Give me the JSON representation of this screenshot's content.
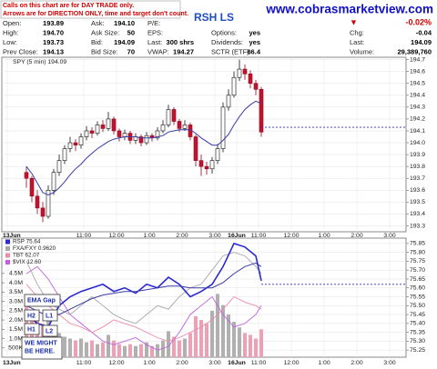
{
  "header": {
    "notice": [
      "Calls on this chart are for DAY TRADE only.",
      "Arrows are for DIRECTION ONLY, time and target don't count."
    ],
    "site": "www.cobrasmarketview.com",
    "symbol_tag": "RSH LS",
    "quote_rows": [
      [
        {
          "label": "Open:",
          "value": "193.89"
        },
        {
          "label": "Ask:",
          "value": "194.10"
        },
        {
          "label": "P/E:"
        }
      ],
      [
        {
          "label": "High:",
          "value": "194.70"
        },
        {
          "label": "Ask Size:",
          "value": "50"
        },
        {
          "label": "EPS:"
        },
        {
          "label": "Options:",
          "value": "yes"
        }
      ],
      [
        {
          "label": "Low:",
          "value": "193.73"
        },
        {
          "label": "Bid:",
          "value": "194.09"
        },
        {
          "label": "Last:",
          "value": "300 shrs"
        },
        {
          "label": "Dividends:",
          "value": "yes"
        }
      ],
      [
        {
          "label": "Prev Close:",
          "value": "194.13"
        },
        {
          "label": "Bid Size:",
          "value": "70"
        },
        {
          "label": "VWAP:",
          "value": "194.27"
        },
        {
          "label": "SCTR (ETF):",
          "value": "66.4"
        }
      ]
    ],
    "change": {
      "arrow": "▼",
      "pct": "-0.02%"
    },
    "stats": [
      {
        "label": "Chg:",
        "value": "-0.04"
      },
      {
        "label": "Last:",
        "value": "194.09"
      },
      {
        "label": "Volume:",
        "value": "29,389,760"
      }
    ]
  },
  "chart_data": [
    {
      "type": "candlestick",
      "title": "SPY (5 min) 194.09",
      "up_color": "#ffffff",
      "down_color": "#c8102e",
      "x": [
        7,
        9,
        11,
        13,
        15,
        17,
        19,
        21,
        23,
        25,
        27,
        29,
        31,
        33,
        35,
        37,
        39,
        41,
        43,
        45,
        47,
        49,
        51,
        53,
        55,
        57,
        59,
        61,
        63,
        65,
        67,
        69,
        71,
        73,
        75,
        77,
        79,
        81,
        83,
        85,
        87,
        89,
        91,
        93
      ],
      "open": [
        193.75,
        193.7,
        193.55,
        193.45,
        193.38,
        193.6,
        193.75,
        193.85,
        193.95,
        194.0,
        193.98,
        194.05,
        194.1,
        194.08,
        194.15,
        194.12,
        194.2,
        194.1,
        194.05,
        194.08,
        194.02,
        194.05,
        194.0,
        194.06,
        194.04,
        194.1,
        194.15,
        194.28,
        194.18,
        194.12,
        194.15,
        194.05,
        193.85,
        193.8,
        193.78,
        193.85,
        193.95,
        194.3,
        194.4,
        194.55,
        194.62,
        194.58,
        194.5,
        194.45
      ],
      "high": [
        193.8,
        193.72,
        193.6,
        193.5,
        193.64,
        193.78,
        193.9,
        193.98,
        194.05,
        194.03,
        194.08,
        194.14,
        194.13,
        194.18,
        194.19,
        194.26,
        194.22,
        194.12,
        194.11,
        194.1,
        194.08,
        194.07,
        194.09,
        194.08,
        194.13,
        194.19,
        194.32,
        194.3,
        194.2,
        194.19,
        194.17,
        194.07,
        193.9,
        193.84,
        193.88,
        193.99,
        194.34,
        194.45,
        194.6,
        194.7,
        194.66,
        194.61,
        194.53,
        194.47
      ],
      "low": [
        193.62,
        193.5,
        193.4,
        193.33,
        193.36,
        193.56,
        193.72,
        193.82,
        193.92,
        193.93,
        193.95,
        194.02,
        194.04,
        194.06,
        194.09,
        194.1,
        194.07,
        194.01,
        194.02,
        193.99,
        193.99,
        193.97,
        193.98,
        194.01,
        194.02,
        194.08,
        194.13,
        194.15,
        194.09,
        194.1,
        194.02,
        193.8,
        193.72,
        193.73,
        193.74,
        193.82,
        193.92,
        194.27,
        194.38,
        194.52,
        194.53,
        194.46,
        194.4,
        194.05
      ],
      "close": [
        193.7,
        193.55,
        193.45,
        193.38,
        193.6,
        193.75,
        193.85,
        193.95,
        194.0,
        193.98,
        194.05,
        194.1,
        194.08,
        194.15,
        194.12,
        194.2,
        194.1,
        194.05,
        194.08,
        194.02,
        194.05,
        194.0,
        194.06,
        194.04,
        194.1,
        194.15,
        194.28,
        194.18,
        194.12,
        194.15,
        194.05,
        193.85,
        193.8,
        193.78,
        193.85,
        193.95,
        194.3,
        194.4,
        194.55,
        194.62,
        194.58,
        194.5,
        194.45,
        194.09
      ],
      "ma": {
        "color": "#3a3aa8",
        "values": [
          193.8,
          193.74,
          193.66,
          193.58,
          193.56,
          193.58,
          193.62,
          193.67,
          193.73,
          193.78,
          193.82,
          193.87,
          193.91,
          193.95,
          193.98,
          194.01,
          194.03,
          194.04,
          194.05,
          194.05,
          194.05,
          194.04,
          194.04,
          194.04,
          194.05,
          194.06,
          194.09,
          194.1,
          194.11,
          194.11,
          194.11,
          194.08,
          194.04,
          194.01,
          193.98,
          193.98,
          194.02,
          194.07,
          194.15,
          194.22,
          194.28,
          194.32,
          194.35,
          194.33
        ]
      },
      "ref_line": {
        "value": 194.13,
        "color": "#2a2ad0"
      },
      "xlim": [
        -2,
        146
      ],
      "ylim": [
        193.25,
        194.72
      ],
      "yticks": [
        193.3,
        193.4,
        193.5,
        193.6,
        193.7,
        193.8,
        193.9,
        {
          "value": 194,
          "label": "194.0"
        },
        194.1,
        194.2,
        194.3,
        194.4,
        194.5,
        194.6,
        194.7
      ],
      "xticks": [
        {
          "value": 0,
          "label": "13Jun"
        },
        {
          "value": 28,
          "label": "11:00"
        },
        {
          "value": 40,
          "label": "12:00"
        },
        {
          "value": 52,
          "label": "1:00"
        },
        {
          "value": 64,
          "label": "2:00"
        },
        {
          "value": 76,
          "label": "3:00"
        },
        {
          "value": 84,
          "label": "16Jun"
        },
        {
          "value": 92,
          "label": "11:00"
        },
        {
          "value": 104,
          "label": "12:00"
        },
        {
          "value": 116,
          "label": "1:00"
        },
        {
          "value": 128,
          "label": "2:00"
        },
        {
          "value": 140,
          "label": "3:00"
        }
      ],
      "grid": true
    },
    {
      "type": "line",
      "x": [
        7,
        11,
        15,
        19,
        23,
        27,
        31,
        35,
        39,
        43,
        47,
        51,
        55,
        59,
        63,
        67,
        71,
        75,
        79,
        83,
        87,
        91,
        93
      ],
      "series": [
        {
          "name": "RSP 75.64",
          "color": "#2a2ad0",
          "values": [
            75.45,
            75.4,
            75.38,
            75.5,
            75.55,
            75.58,
            75.6,
            75.62,
            75.58,
            75.6,
            75.57,
            75.62,
            75.6,
            75.66,
            75.62,
            75.55,
            75.58,
            75.62,
            75.72,
            75.85,
            75.83,
            75.78,
            75.64
          ]
        },
        {
          "name": "FXA/FXY 0.9620",
          "color": "#a8a8a8",
          "values": [
            75.75,
            75.62,
            75.52,
            75.48,
            75.45,
            75.5,
            75.55,
            75.5,
            75.45,
            75.42,
            75.4,
            75.45,
            75.5,
            75.48,
            75.55,
            75.6,
            75.62,
            75.7,
            75.78,
            75.8,
            75.78,
            75.72,
            75.68
          ]
        },
        {
          "name": "TBT 62.07",
          "color": "#f08aa8",
          "values": [
            75.62,
            75.55,
            75.5,
            75.45,
            75.4,
            75.38,
            75.35,
            75.38,
            75.42,
            75.4,
            75.38,
            75.35,
            75.32,
            75.3,
            75.32,
            75.35,
            75.38,
            75.42,
            75.48,
            75.55,
            75.52,
            75.5,
            75.48
          ]
        },
        {
          "name": "$VIX 12.60",
          "color": "#c060e0",
          "values": [
            75.68,
            75.72,
            75.65,
            75.55,
            75.45,
            75.4,
            75.35,
            75.3,
            75.28,
            75.3,
            75.32,
            75.28,
            75.25,
            75.27,
            75.35,
            75.45,
            75.5,
            75.55,
            75.45,
            75.38,
            75.4,
            75.45,
            75.5
          ]
        }
      ],
      "ma": {
        "color": "#3a3aa8",
        "values": [
          75.5,
          75.47,
          75.44,
          75.45,
          75.48,
          75.51,
          75.54,
          75.56,
          75.57,
          75.58,
          75.58,
          75.59,
          75.6,
          75.61,
          75.61,
          75.6,
          75.6,
          75.6,
          75.63,
          75.68,
          75.72,
          75.74,
          75.72
        ]
      },
      "ref_line": {
        "value": 75.62,
        "color": "#2a2ad0"
      },
      "volume": {
        "up_color": "#b0b0b0",
        "down_color": "#f0a0b4",
        "values": [
          3200000,
          2400000,
          2000000,
          1800000,
          2200000,
          1500000,
          1300000,
          1100000,
          1000000,
          900000,
          1000000,
          800000,
          900000,
          700000,
          800000,
          1200000,
          900000,
          700000,
          600000,
          700000,
          600000,
          700000,
          800000,
          600000,
          700000,
          900000,
          1400000,
          1100000,
          900000,
          1000000,
          1300000,
          2200000,
          2000000,
          1800000,
          2500000,
          3400000,
          2800000,
          2300000,
          1900000,
          1600000,
          1300000,
          1200000,
          1000000,
          1500000
        ],
        "ylim": [
          0,
          6400000
        ],
        "yticks": [
          {
            "value": 500000,
            "label": "500K"
          },
          {
            "value": 1000000,
            "label": "1.0M"
          },
          {
            "value": 1500000,
            "label": "1.5M"
          },
          {
            "value": 2000000,
            "label": "2.0M"
          },
          {
            "value": 2500000,
            "label": "2.5M"
          },
          {
            "value": 3000000,
            "label": "3.0M"
          },
          {
            "value": 3500000,
            "label": "3.5M"
          },
          {
            "value": 4000000,
            "label": "4.0M"
          },
          {
            "value": 4500000,
            "label": "4.5M"
          }
        ]
      },
      "annotations": [
        [
          "EMA Gap"
        ],
        [
          "H2"
        ],
        [
          "L1"
        ],
        [
          "H1"
        ],
        [
          "L2"
        ],
        [
          "WE MIGHT",
          "BE HERE."
        ]
      ],
      "xlim": [
        -2,
        146
      ],
      "ylim": [
        75.21,
        75.88
      ],
      "yticks": [
        75.25,
        {
          "value": 75.3,
          "label": "75.30"
        },
        75.35,
        {
          "value": 75.4,
          "label": "75.40"
        },
        75.45,
        {
          "value": 75.5,
          "label": "75.50"
        },
        75.55,
        {
          "value": 75.6,
          "label": "75.60"
        },
        75.65,
        {
          "value": 75.7,
          "label": "75.70"
        },
        75.75,
        {
          "value": 75.8,
          "label": "75.80"
        },
        75.85
      ],
      "xticks": [
        {
          "value": 0,
          "label": "13Jun"
        },
        {
          "value": 28,
          "label": "11:00"
        },
        {
          "value": 40,
          "label": "12:00"
        },
        {
          "value": 52,
          "label": "1:00"
        },
        {
          "value": 64,
          "label": "2:00"
        },
        {
          "value": 76,
          "label": "3:00"
        },
        {
          "value": 84,
          "label": "16Jun"
        },
        {
          "value": 92,
          "label": "11:00"
        },
        {
          "value": 104,
          "label": "12:00"
        },
        {
          "value": 116,
          "label": "1:00"
        },
        {
          "value": 128,
          "label": "2:00"
        },
        {
          "value": 140,
          "label": "3:00"
        }
      ],
      "grid": true
    }
  ]
}
